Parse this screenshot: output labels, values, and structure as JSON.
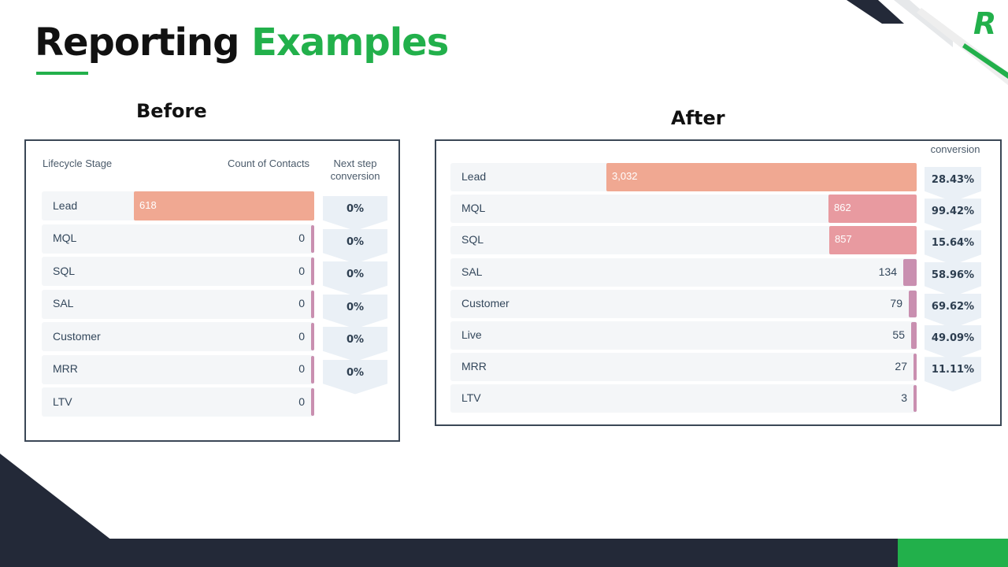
{
  "slide": {
    "title_part1": "Reporting",
    "title_part2": "Examples",
    "logo_letter": "R",
    "colors": {
      "accent_green": "#22b04b",
      "navy": "#232938",
      "bar_salmon": "#f0a892",
      "bar_pink": "#e89aa0",
      "bar_mauve": "#c98fb0"
    }
  },
  "chart_data": [
    {
      "type": "bar",
      "section_label": "Before",
      "orientation": "horizontal",
      "column_headers": {
        "stage": "Lifecycle Stage",
        "count": "Count of Contacts",
        "conversion": "Next step conversion"
      },
      "categories": [
        "Lead",
        "MQL",
        "SQL",
        "SAL",
        "Customer",
        "MRR",
        "LTV"
      ],
      "values": [
        618,
        0,
        0,
        0,
        0,
        0,
        0
      ],
      "value_labels": [
        "618",
        "0",
        "0",
        "0",
        "0",
        "0",
        "0"
      ],
      "conversions": [
        "0%",
        "0%",
        "0%",
        "0%",
        "0%",
        "0%"
      ]
    },
    {
      "type": "bar",
      "section_label": "After",
      "orientation": "horizontal",
      "column_headers": {
        "conversion": "conversion"
      },
      "categories": [
        "Lead",
        "MQL",
        "SQL",
        "SAL",
        "Customer",
        "Live",
        "MRR",
        "LTV"
      ],
      "values": [
        3032,
        862,
        857,
        134,
        79,
        55,
        27,
        3
      ],
      "value_labels": [
        "3,032",
        "862",
        "857",
        "134",
        "79",
        "55",
        "27",
        "3"
      ],
      "conversions": [
        "28.43%",
        "99.42%",
        "15.64%",
        "58.96%",
        "69.62%",
        "49.09%",
        "11.11%"
      ]
    }
  ]
}
